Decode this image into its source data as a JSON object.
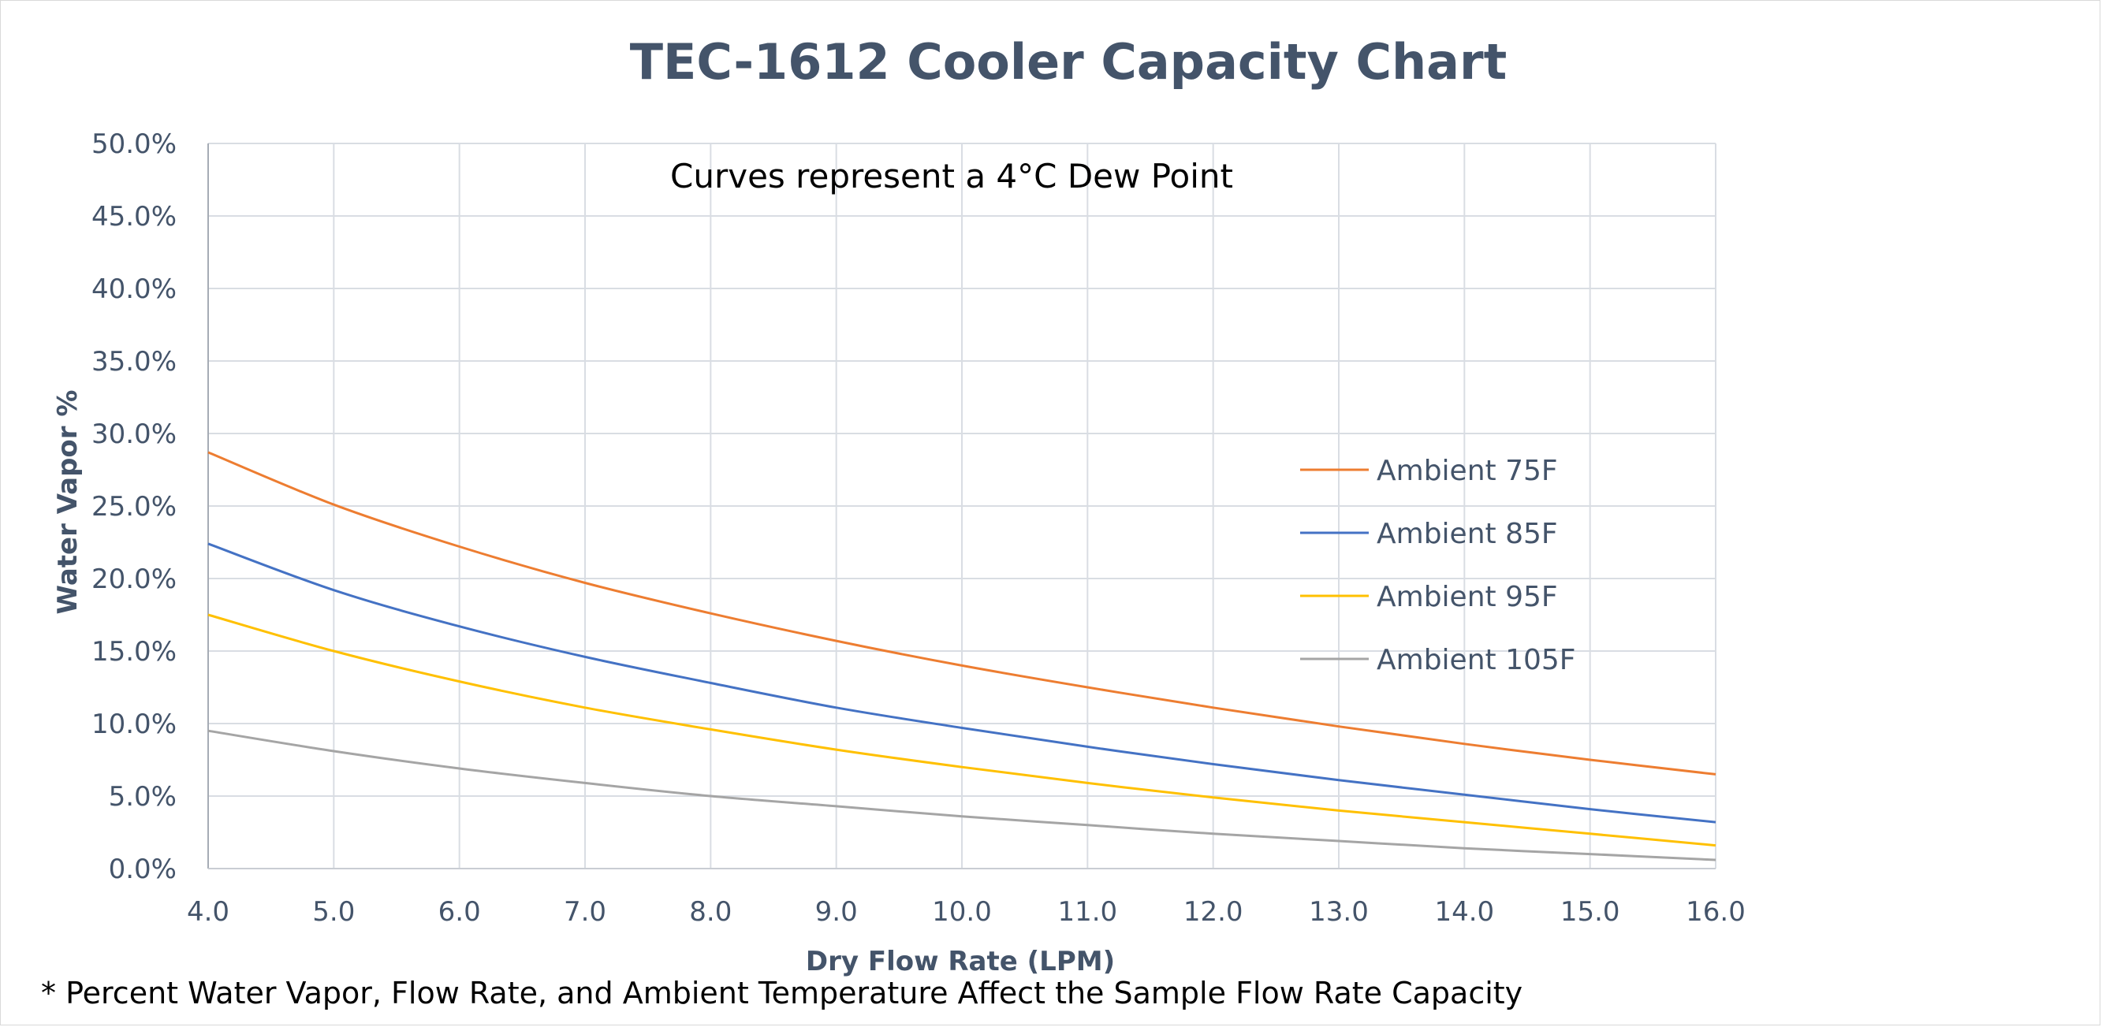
{
  "chart_data": {
    "type": "line",
    "title": "TEC-1612 Cooler Capacity Chart",
    "xlabel": "Dry Flow Rate (LPM)",
    "ylabel": "Water Vapor %",
    "xlim": [
      4.0,
      16.0
    ],
    "ylim": [
      0.0,
      50.0
    ],
    "x_ticks": [
      "4.0",
      "5.0",
      "6.0",
      "7.0",
      "8.0",
      "9.0",
      "10.0",
      "11.0",
      "12.0",
      "13.0",
      "14.0",
      "15.0",
      "16.0"
    ],
    "y_ticks": [
      "0.0%",
      "5.0%",
      "10.0%",
      "15.0%",
      "20.0%",
      "25.0%",
      "30.0%",
      "35.0%",
      "40.0%",
      "45.0%",
      "50.0%"
    ],
    "grid": true,
    "legend_position": "right",
    "annotation": "Curves represent a 4°C Dew Point",
    "x": [
      4.0,
      5.0,
      6.0,
      7.0,
      8.0,
      9.0,
      10.0,
      11.0,
      12.0,
      13.0,
      14.0,
      15.0,
      16.0
    ],
    "series": [
      {
        "name": "Ambient 75F",
        "color": "#ed7d31",
        "values": [
          28.7,
          25.1,
          22.2,
          19.7,
          17.6,
          15.7,
          14.0,
          12.5,
          11.1,
          9.8,
          8.6,
          7.5,
          6.5
        ]
      },
      {
        "name": "Ambient 85F",
        "color": "#4472c4",
        "values": [
          22.4,
          19.2,
          16.7,
          14.6,
          12.8,
          11.1,
          9.7,
          8.4,
          7.2,
          6.1,
          5.1,
          4.1,
          3.2
        ]
      },
      {
        "name": "Ambient 95F",
        "color": "#ffc000",
        "values": [
          17.5,
          15.0,
          12.9,
          11.1,
          9.6,
          8.2,
          7.0,
          5.9,
          4.9,
          4.0,
          3.2,
          2.4,
          1.6
        ]
      },
      {
        "name": "Ambient 105F",
        "color": "#a5a5a5",
        "values": [
          9.5,
          8.1,
          6.9,
          5.9,
          5.0,
          4.3,
          3.6,
          3.0,
          2.4,
          1.9,
          1.4,
          1.0,
          0.6
        ]
      }
    ],
    "footnote": "* Percent Water Vapor, Flow Rate, and Ambient Temperature Affect the Sample Flow Rate Capacity"
  }
}
